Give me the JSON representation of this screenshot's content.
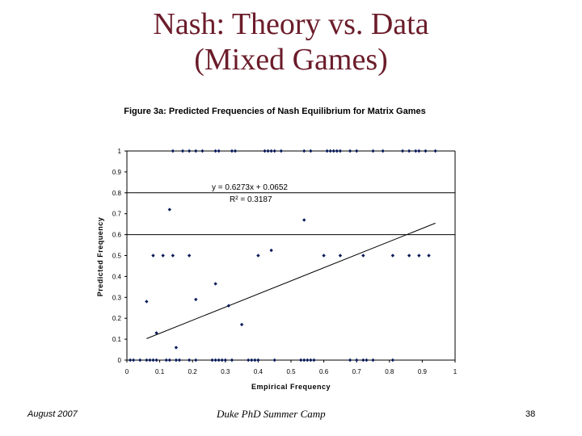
{
  "slide": {
    "title_line1": "Nash: Theory vs. Data",
    "title_line2": "(Mixed Games)",
    "footer_left": "August 2007",
    "footer_center": "Duke PhD Summer Camp",
    "footer_right": "38"
  },
  "colors": {
    "title": "#6b1c2a",
    "points": "#0b1c5a",
    "lines": "#000000"
  },
  "chart_data": {
    "type": "scatter",
    "title": "Figure 3a: Predicted Frequencies of Nash Equilibrium for Matrix Games",
    "xlabel": "Empirical Frequency",
    "ylabel": "Predicted Frequency",
    "xlim": [
      0,
      1
    ],
    "ylim": [
      0,
      1
    ],
    "xticks": [
      "0",
      "0.1",
      "0.2",
      "0.3",
      "0.4",
      "0.5",
      "0.6",
      "0.7",
      "0.8",
      "0.9",
      "1"
    ],
    "yticks": [
      "0",
      "0.1",
      "0.2",
      "0.3",
      "0.4",
      "0.5",
      "0.6",
      "0.7",
      "0.8",
      "0.9",
      "1"
    ],
    "reference_lines_y": [
      0.8,
      0.6
    ],
    "trendline": {
      "equation": "y = 0.6273x + 0.0652",
      "r2": "R² = 0.3187",
      "slope": 0.6273,
      "intercept": 0.0652,
      "x_range": [
        0.06,
        0.94
      ]
    },
    "points": [
      [
        0.14,
        1
      ],
      [
        0.17,
        1
      ],
      [
        0.19,
        1
      ],
      [
        0.21,
        1
      ],
      [
        0.23,
        1
      ],
      [
        0.27,
        1
      ],
      [
        0.28,
        1
      ],
      [
        0.32,
        1
      ],
      [
        0.33,
        1
      ],
      [
        0.42,
        1
      ],
      [
        0.43,
        1
      ],
      [
        0.44,
        1
      ],
      [
        0.45,
        1
      ],
      [
        0.47,
        1
      ],
      [
        0.54,
        1
      ],
      [
        0.56,
        1
      ],
      [
        0.61,
        1
      ],
      [
        0.62,
        1
      ],
      [
        0.63,
        1
      ],
      [
        0.64,
        1
      ],
      [
        0.65,
        1
      ],
      [
        0.68,
        1
      ],
      [
        0.7,
        1
      ],
      [
        0.75,
        1
      ],
      [
        0.78,
        1
      ],
      [
        0.84,
        1
      ],
      [
        0.86,
        1
      ],
      [
        0.88,
        1
      ],
      [
        0.89,
        1
      ],
      [
        0.91,
        1
      ],
      [
        0.94,
        1
      ],
      [
        0.13,
        0.72
      ],
      [
        0.54,
        0.67
      ],
      [
        0.44,
        0.525
      ],
      [
        0.27,
        0.365
      ],
      [
        0.08,
        0.5
      ],
      [
        0.11,
        0.5
      ],
      [
        0.14,
        0.5
      ],
      [
        0.19,
        0.5
      ],
      [
        0.4,
        0.5
      ],
      [
        0.6,
        0.5
      ],
      [
        0.65,
        0.5
      ],
      [
        0.72,
        0.5
      ],
      [
        0.81,
        0.5
      ],
      [
        0.86,
        0.5
      ],
      [
        0.89,
        0.5
      ],
      [
        0.92,
        0.5
      ],
      [
        0.06,
        0.28
      ],
      [
        0.21,
        0.29
      ],
      [
        0.31,
        0.26
      ],
      [
        0.35,
        0.17
      ],
      [
        0.09,
        0.13
      ],
      [
        0.15,
        0.06
      ],
      [
        0.01,
        0
      ],
      [
        0.02,
        0
      ],
      [
        0.04,
        0
      ],
      [
        0.06,
        0
      ],
      [
        0.07,
        0
      ],
      [
        0.08,
        0
      ],
      [
        0.09,
        0
      ],
      [
        0.12,
        0
      ],
      [
        0.13,
        0
      ],
      [
        0.15,
        0
      ],
      [
        0.16,
        0
      ],
      [
        0.19,
        0
      ],
      [
        0.21,
        0
      ],
      [
        0.26,
        0
      ],
      [
        0.27,
        0
      ],
      [
        0.28,
        0
      ],
      [
        0.29,
        0
      ],
      [
        0.3,
        0
      ],
      [
        0.32,
        0
      ],
      [
        0.37,
        0
      ],
      [
        0.38,
        0
      ],
      [
        0.39,
        0
      ],
      [
        0.4,
        0
      ],
      [
        0.45,
        0
      ],
      [
        0.53,
        0
      ],
      [
        0.54,
        0
      ],
      [
        0.55,
        0
      ],
      [
        0.56,
        0
      ],
      [
        0.57,
        0
      ],
      [
        0.68,
        0
      ],
      [
        0.7,
        0
      ],
      [
        0.72,
        0
      ],
      [
        0.73,
        0
      ],
      [
        0.75,
        0
      ],
      [
        0.81,
        0
      ]
    ]
  }
}
